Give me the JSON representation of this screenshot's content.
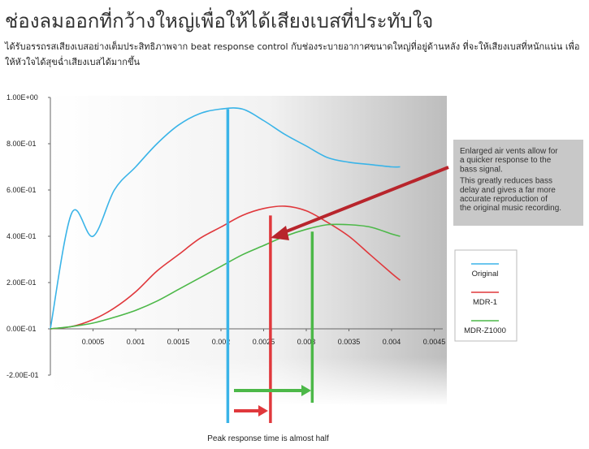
{
  "page": {
    "heading": "ช่องลมออกที่กว้างใหญ่เพื่อให้ได้เสียงเบสที่ประทับใจ",
    "description": "ได้รับอรรถรสเสียงเบสอย่างเต็มประสิทธิภาพจาก beat response control กับช่องระบายอากาศขนาดใหญ่ที่อยู่ด้านหลัง ที่จะให้เสียงเบสที่หนักแน่น เพื่อให้หัวใจได้สุขฉ่ำเสียงเบสได้มากขึ้น"
  },
  "colors": {
    "original": "#3ab4e8",
    "mdr1": "#e0383c",
    "mdrz1000": "#4cb848",
    "annotation_arrow": "#b8252c"
  },
  "chart_data": {
    "type": "line",
    "x": [
      0,
      0.00025,
      0.0005,
      0.00075,
      0.001,
      0.00125,
      0.0015,
      0.00175,
      0.002,
      0.00225,
      0.0025,
      0.00275,
      0.003,
      0.00325,
      0.0035,
      0.00375,
      0.004,
      0.0041
    ],
    "series": [
      {
        "name": "Original",
        "values": [
          0.0,
          0.5,
          0.4,
          0.6,
          0.7,
          0.8,
          0.88,
          0.93,
          0.95,
          0.95,
          0.9,
          0.84,
          0.79,
          0.74,
          0.72,
          0.71,
          0.7,
          0.7
        ]
      },
      {
        "name": "MDR-1",
        "values": [
          0.0,
          0.01,
          0.04,
          0.09,
          0.16,
          0.25,
          0.32,
          0.39,
          0.44,
          0.49,
          0.52,
          0.53,
          0.51,
          0.46,
          0.4,
          0.32,
          0.24,
          0.21
        ]
      },
      {
        "name": "MDR-Z1000",
        "values": [
          0.0,
          0.01,
          0.025,
          0.05,
          0.08,
          0.12,
          0.17,
          0.22,
          0.27,
          0.32,
          0.36,
          0.4,
          0.43,
          0.45,
          0.45,
          0.44,
          0.41,
          0.4
        ]
      }
    ],
    "xticks": [
      "0.0005",
      "0.001",
      "0.0015",
      "0.002",
      "0.0025",
      "0.003",
      "0.0035",
      "0.004",
      "0.0045"
    ],
    "xtick_values": [
      0.0005,
      0.001,
      0.0015,
      0.002,
      0.0025,
      0.003,
      0.0035,
      0.004,
      0.0045
    ],
    "yticks": [
      "1.00E+00",
      "8.00E-01",
      "6.00E-01",
      "4.00E-01",
      "2.00E-01",
      "0.00E-01",
      "-2.00E-01"
    ],
    "ytick_values": [
      1.0,
      0.8,
      0.6,
      0.4,
      0.2,
      0.0,
      -0.2
    ],
    "xlim": [
      0,
      0.0046
    ],
    "ylim": [
      -0.2,
      1.0
    ],
    "peak_markers": [
      {
        "series": "Original",
        "x": 0.00208
      },
      {
        "series": "MDR-1",
        "x": 0.00258
      },
      {
        "series": "MDR-Z1000",
        "x": 0.00307
      }
    ],
    "annotation": {
      "lines": [
        "Enlarged air vents allow for",
        "a quicker response to the",
        "bass signal.",
        "This greatly reduces bass",
        "delay and gives a far more",
        "accurate reproduction of",
        "the original music recording."
      ]
    },
    "caption": "Peak response time is almost half",
    "legend_position": "right"
  }
}
